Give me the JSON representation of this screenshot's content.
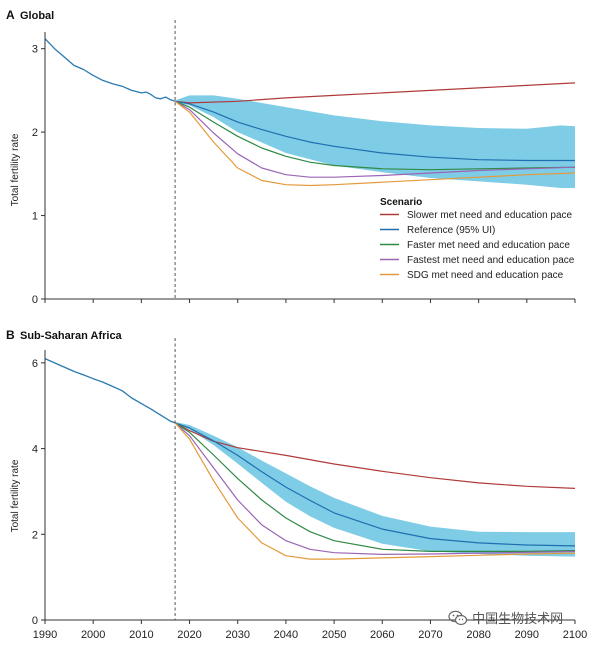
{
  "chart_data": [
    {
      "type": "line",
      "panel_letter": "A",
      "title": "Global",
      "xlabel": "",
      "ylabel": "Total fertility rate",
      "xlim": [
        1990,
        2100
      ],
      "ylim": [
        0,
        3.2
      ],
      "yticks": [
        0,
        1,
        2,
        3
      ],
      "divider_year": 2017,
      "legend": {
        "title": "Scenario",
        "position": "right",
        "entries": [
          "Slower met need and education pace",
          "Reference (95% UI)",
          "Faster met need and education pace",
          "Fastest met need and education pace",
          "SDG met need and education pace"
        ]
      },
      "historical": {
        "name": "Past estimate",
        "color": "#2a7ab0",
        "x": [
          1990,
          1992,
          1994,
          1996,
          1998,
          2000,
          2002,
          2004,
          2006,
          2008,
          2010,
          2011,
          2012,
          2013,
          2014,
          2015,
          2016,
          2017
        ],
        "y": [
          3.12,
          3.0,
          2.9,
          2.8,
          2.75,
          2.68,
          2.62,
          2.58,
          2.55,
          2.5,
          2.47,
          2.48,
          2.45,
          2.41,
          2.4,
          2.42,
          2.39,
          2.37
        ]
      },
      "uncertainty": {
        "name": "Reference (95% UI)",
        "color": "#7fcce6",
        "x": [
          2017,
          2020,
          2025,
          2030,
          2040,
          2050,
          2060,
          2070,
          2080,
          2090,
          2097,
          2100
        ],
        "upper": [
          2.38,
          2.44,
          2.44,
          2.4,
          2.3,
          2.2,
          2.13,
          2.08,
          2.05,
          2.04,
          2.08,
          2.07
        ],
        "lower": [
          2.36,
          2.32,
          2.18,
          2.0,
          1.75,
          1.6,
          1.52,
          1.45,
          1.41,
          1.37,
          1.33,
          1.33
        ]
      },
      "series": [
        {
          "name": "Slower met need and education pace",
          "color": "#b03a3a",
          "x": [
            2017,
            2020,
            2030,
            2040,
            2050,
            2060,
            2070,
            2080,
            2090,
            2100
          ],
          "y": [
            2.37,
            2.35,
            2.37,
            2.41,
            2.44,
            2.47,
            2.5,
            2.53,
            2.56,
            2.59
          ]
        },
        {
          "name": "Reference (95% UI)",
          "color": "#1f6fb0",
          "x": [
            2017,
            2020,
            2025,
            2030,
            2035,
            2040,
            2045,
            2050,
            2060,
            2070,
            2080,
            2090,
            2100
          ],
          "y": [
            2.37,
            2.34,
            2.24,
            2.12,
            2.03,
            1.95,
            1.88,
            1.83,
            1.75,
            1.7,
            1.67,
            1.66,
            1.66
          ]
        },
        {
          "name": "Faster met need and education pace",
          "color": "#2f8a44",
          "x": [
            2017,
            2020,
            2025,
            2030,
            2035,
            2040,
            2045,
            2050,
            2060,
            2070,
            2080,
            2090,
            2100
          ],
          "y": [
            2.37,
            2.3,
            2.12,
            1.95,
            1.81,
            1.71,
            1.64,
            1.6,
            1.56,
            1.55,
            1.56,
            1.57,
            1.58
          ]
        },
        {
          "name": "Fastest met need and education pace",
          "color": "#9a66b5",
          "x": [
            2017,
            2020,
            2025,
            2030,
            2035,
            2040,
            2045,
            2050,
            2060,
            2070,
            2080,
            2090,
            2100
          ],
          "y": [
            2.37,
            2.27,
            1.99,
            1.74,
            1.57,
            1.49,
            1.46,
            1.46,
            1.48,
            1.51,
            1.54,
            1.56,
            1.58
          ]
        },
        {
          "name": "SDG met need and education pace",
          "color": "#e49a3a",
          "x": [
            2017,
            2020,
            2025,
            2030,
            2035,
            2040,
            2045,
            2050,
            2060,
            2070,
            2080,
            2090,
            2100
          ],
          "y": [
            2.37,
            2.24,
            1.88,
            1.57,
            1.42,
            1.37,
            1.36,
            1.37,
            1.4,
            1.43,
            1.46,
            1.49,
            1.51
          ]
        }
      ]
    },
    {
      "type": "line",
      "panel_letter": "B",
      "title": "Sub-Saharan Africa",
      "xlabel": "",
      "ylabel": "Total fertility rate",
      "xlim": [
        1990,
        2100
      ],
      "ylim": [
        0,
        6.3
      ],
      "yticks": [
        0,
        2,
        4,
        6
      ],
      "xticks": [
        1990,
        2000,
        2010,
        2020,
        2030,
        2040,
        2050,
        2060,
        2070,
        2080,
        2090,
        2100
      ],
      "divider_year": 2017,
      "historical": {
        "name": "Past estimate",
        "color": "#2a7ab0",
        "x": [
          1990,
          1992,
          1994,
          1996,
          1998,
          2000,
          2002,
          2004,
          2006,
          2008,
          2010,
          2012,
          2014,
          2016,
          2017
        ],
        "y": [
          6.1,
          6.0,
          5.9,
          5.8,
          5.72,
          5.63,
          5.55,
          5.45,
          5.35,
          5.18,
          5.05,
          4.92,
          4.78,
          4.64,
          4.6
        ]
      },
      "uncertainty": {
        "name": "Reference (95% UI)",
        "color": "#7fcce6",
        "x": [
          2017,
          2020,
          2025,
          2030,
          2035,
          2040,
          2045,
          2050,
          2060,
          2070,
          2080,
          2090,
          2100
        ],
        "upper": [
          4.62,
          4.55,
          4.3,
          4.03,
          3.72,
          3.42,
          3.12,
          2.85,
          2.43,
          2.18,
          2.06,
          2.05,
          2.05
        ],
        "lower": [
          4.58,
          4.45,
          4.08,
          3.65,
          3.2,
          2.76,
          2.42,
          2.15,
          1.78,
          1.6,
          1.54,
          1.5,
          1.48
        ]
      },
      "series": [
        {
          "name": "Slower met need and education pace",
          "color": "#b03a3a",
          "x": [
            2017,
            2020,
            2025,
            2030,
            2040,
            2050,
            2060,
            2070,
            2080,
            2090,
            2100
          ],
          "y": [
            4.6,
            4.42,
            4.17,
            4.02,
            3.84,
            3.64,
            3.47,
            3.32,
            3.2,
            3.12,
            3.07
          ]
        },
        {
          "name": "Reference (95% UI)",
          "color": "#1f6fb0",
          "x": [
            2017,
            2020,
            2025,
            2030,
            2035,
            2040,
            2045,
            2050,
            2060,
            2070,
            2080,
            2090,
            2100
          ],
          "y": [
            4.6,
            4.48,
            4.18,
            3.84,
            3.46,
            3.1,
            2.79,
            2.5,
            2.12,
            1.9,
            1.8,
            1.75,
            1.73
          ]
        },
        {
          "name": "Faster met need and education pace",
          "color": "#2f8a44",
          "x": [
            2017,
            2020,
            2025,
            2030,
            2035,
            2040,
            2045,
            2050,
            2060,
            2070,
            2080,
            2090,
            2100
          ],
          "y": [
            4.6,
            4.38,
            3.85,
            3.3,
            2.8,
            2.38,
            2.06,
            1.85,
            1.65,
            1.6,
            1.6,
            1.6,
            1.62
          ]
        },
        {
          "name": "Fastest met need and education pace",
          "color": "#9a66b5",
          "x": [
            2017,
            2020,
            2025,
            2030,
            2035,
            2040,
            2045,
            2050,
            2060,
            2070,
            2080,
            2090,
            2100
          ],
          "y": [
            4.6,
            4.3,
            3.55,
            2.8,
            2.22,
            1.85,
            1.65,
            1.57,
            1.53,
            1.54,
            1.56,
            1.58,
            1.6
          ]
        },
        {
          "name": "SDG met need and education pace",
          "color": "#e49a3a",
          "x": [
            2017,
            2020,
            2025,
            2030,
            2035,
            2040,
            2045,
            2050,
            2060,
            2070,
            2080,
            2090,
            2100
          ],
          "y": [
            4.6,
            4.22,
            3.25,
            2.38,
            1.8,
            1.5,
            1.42,
            1.42,
            1.45,
            1.48,
            1.51,
            1.54,
            1.56
          ]
        }
      ]
    }
  ],
  "watermark": {
    "text": "中国生物技术网",
    "icon": "wechat-icon"
  }
}
